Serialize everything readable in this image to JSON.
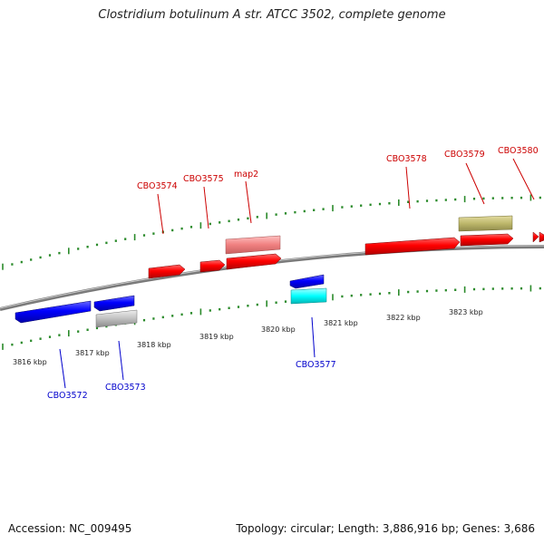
{
  "title": "Clostridium botulinum A str. ATCC 3502, complete genome",
  "footer": {
    "accession": "Accession: NC_009495",
    "topology": "Topology: circular; Length: 3,886,916 bp; Genes: 3,686"
  },
  "colors": {
    "forward_strand": "#ff0000",
    "reverse_strand": "#0000ff",
    "pseudo_forward": "#f08080",
    "other_forward": "#bdb76b",
    "grey_feature": "#c0c0c0",
    "cyan_feature": "#00ffff",
    "tick": "#2a8a2a",
    "backbone": "#808080"
  },
  "scale": {
    "unit": "kbp",
    "labels": [
      "3816 kbp",
      "3817 kbp",
      "3818 kbp",
      "3819 kbp",
      "3820 kbp",
      "3821 kbp",
      "3822 kbp",
      "3823 kbp"
    ]
  },
  "genes": [
    {
      "id": "CBO3572",
      "strand": "reverse",
      "color": "#0000ff"
    },
    {
      "id": "CBO3573",
      "strand": "reverse",
      "color": "#0000ff"
    },
    {
      "id": "CBO3574",
      "strand": "forward",
      "color": "#ff0000"
    },
    {
      "id": "CBO3575",
      "strand": "forward",
      "color": "#ff0000"
    },
    {
      "id": "map2",
      "strand": "forward",
      "color": "#ff0000"
    },
    {
      "id": "CBO3577",
      "strand": "reverse",
      "color": "#0000ff"
    },
    {
      "id": "CBO3578",
      "strand": "forward",
      "color": "#ff0000"
    },
    {
      "id": "CBO3579",
      "strand": "forward",
      "color": "#ff0000"
    },
    {
      "id": "CBO3580",
      "strand": "forward",
      "color": "#ff0000"
    }
  ]
}
